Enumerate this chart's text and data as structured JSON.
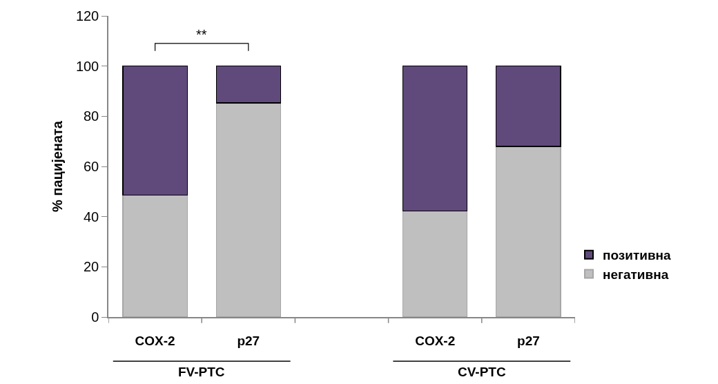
{
  "chart_data": {
    "type": "bar",
    "stacked": true,
    "ylabel": "% пацијената",
    "categories": [
      "COX-2",
      "p27",
      null,
      "COX-2",
      "p27"
    ],
    "series": [
      {
        "name": "негативна",
        "color": "#bfbfbf",
        "values": [
          48.5,
          85.3,
          null,
          42.3,
          68.0
        ]
      },
      {
        "name": "позитивна",
        "color": "#604a7b",
        "values": [
          51.5,
          14.7,
          null,
          57.7,
          32.0
        ]
      }
    ],
    "ylim": [
      0,
      120
    ],
    "yticks": [
      0,
      20,
      40,
      60,
      80,
      100,
      120
    ],
    "legend": "right",
    "annotations": [
      "**",
      "FV-PTC",
      "CV-PTC"
    ]
  }
}
